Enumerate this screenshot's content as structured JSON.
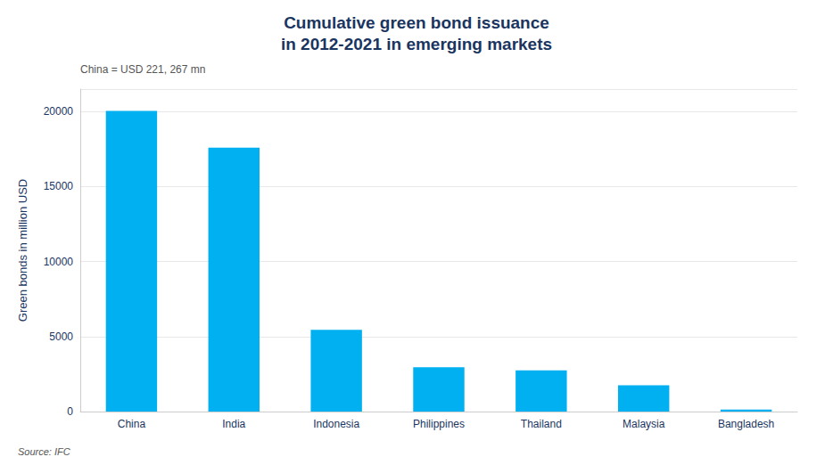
{
  "chart_data": {
    "type": "bar",
    "title": "Cumulative green bond issuance\nin 2012-2021 in emerging markets",
    "ylabel": "Green bonds in million USD",
    "annotations": [
      "China = USD 221, 267 mn",
      "Source: IFC"
    ],
    "categories": [
      "China",
      "India",
      "Indonesia",
      "Philippines",
      "Thailand",
      "Malaysia",
      "Bangladesh"
    ],
    "values": [
      20050,
      17600,
      5450,
      2950,
      2750,
      1750,
      130
    ],
    "color": "#00b0f0",
    "ylim": [
      0,
      21500
    ],
    "yticks": [
      0,
      5000,
      10000,
      15000,
      20000
    ],
    "grid": true
  }
}
